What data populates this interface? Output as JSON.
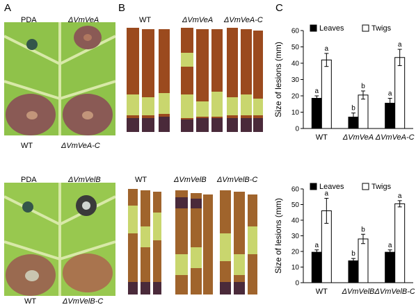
{
  "panels": {
    "A": "A",
    "B": "B",
    "C": "C"
  },
  "panel_a": {
    "top": {
      "tl": "PDA",
      "tr": "ΔVmVeA",
      "bl": "WT",
      "br": "ΔVmVeA-C"
    },
    "bottom": {
      "tl": "PDA",
      "tr": "ΔVmVelB",
      "bl": "WT",
      "br": "ΔVmVelB-C"
    }
  },
  "panel_b": {
    "top": [
      "WT",
      "ΔVmVeA",
      "ΔVmVeA-C"
    ],
    "bottom": [
      "WT",
      "ΔVmVelB",
      "ΔVmVelB-C"
    ]
  },
  "colors": {
    "leaf": "#8fc24a",
    "vein": "#d8e9a8",
    "lesion": "#8a5a55",
    "bark": "#7a3a1e",
    "stripe": "#c9d66e",
    "leaves_bar": "#000000",
    "twigs_bar": "#ffffff"
  },
  "chart_data": [
    {
      "type": "bar",
      "ylabel": "Size of lesions (mm)",
      "categories": [
        "WT",
        "ΔVmVeA",
        "ΔVmVeA-C"
      ],
      "ylim": [
        0,
        60
      ],
      "yticks": [
        0,
        10,
        20,
        30,
        40,
        50,
        60
      ],
      "legend": "top",
      "series": [
        {
          "name": "Leaves",
          "values": [
            18.5,
            7,
            15.5
          ],
          "errors": [
            1.5,
            2.5,
            3
          ],
          "sig": [
            "a",
            "b",
            "a"
          ]
        },
        {
          "name": "Twigs",
          "values": [
            42,
            20.5,
            43.5
          ],
          "errors": [
            4,
            2.5,
            5
          ],
          "sig": [
            "a",
            "b",
            "a"
          ]
        }
      ]
    },
    {
      "type": "bar",
      "ylabel": "Size of lesions (mm)",
      "categories": [
        "WT",
        "ΔVmVelB",
        "ΔVmVelB-C"
      ],
      "ylim": [
        0,
        60
      ],
      "yticks": [
        0,
        10,
        20,
        30,
        40,
        50,
        60
      ],
      "legend": "top",
      "series": [
        {
          "name": "Leaves",
          "values": [
            19.5,
            14,
            19.5
          ],
          "errors": [
            1.5,
            1.5,
            1.5
          ],
          "sig": [
            "a",
            "b",
            "a"
          ]
        },
        {
          "name": "Twigs",
          "values": [
            46,
            28,
            50.5
          ],
          "errors": [
            8,
            3,
            2
          ],
          "sig": [
            "a",
            "b",
            "a"
          ]
        }
      ]
    }
  ]
}
